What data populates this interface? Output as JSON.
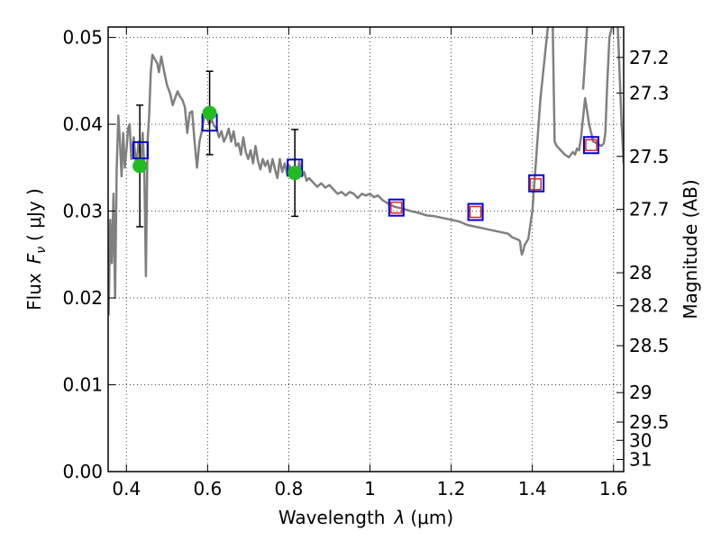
{
  "chart_data": {
    "type": "line",
    "xlabel": "Wavelength",
    "xlabel_symbol": "λ",
    "xlabel_unit": "(μm)",
    "ylabel": "Flux",
    "ylabel_symbol": "F",
    "ylabel_subscript": "ν",
    "ylabel_unit": "( μJy )",
    "y2label": "Magnitude (AB)",
    "xlim": [
      0.355,
      1.625
    ],
    "ylim": [
      0.0,
      0.0512
    ],
    "grid": true,
    "x_ticks": [
      {
        "value": 0.4,
        "label": "0.4"
      },
      {
        "value": 0.6,
        "label": "0.6"
      },
      {
        "value": 0.8,
        "label": "0.8"
      },
      {
        "value": 1.0,
        "label": "1"
      },
      {
        "value": 1.2,
        "label": "1.2"
      },
      {
        "value": 1.4,
        "label": "1.4"
      },
      {
        "value": 1.6,
        "label": "1.6"
      }
    ],
    "y_ticks": [
      {
        "value": 0.0,
        "label": "0.00"
      },
      {
        "value": 0.01,
        "label": "0.01"
      },
      {
        "value": 0.02,
        "label": "0.02"
      },
      {
        "value": 0.03,
        "label": "0.03"
      },
      {
        "value": 0.04,
        "label": "0.04"
      },
      {
        "value": 0.05,
        "label": "0.05"
      }
    ],
    "y2_ticks": [
      {
        "flux": 0.0477,
        "label": "27.2"
      },
      {
        "flux": 0.0436,
        "label": "27.3"
      },
      {
        "flux": 0.0363,
        "label": "27.5"
      },
      {
        "flux": 0.0302,
        "label": "27.7"
      },
      {
        "flux": 0.0229,
        "label": "28"
      },
      {
        "flux": 0.0191,
        "label": "28.2"
      },
      {
        "flux": 0.0145,
        "label": "28.5"
      },
      {
        "flux": 0.0091,
        "label": "29"
      },
      {
        "flux": 0.0057,
        "label": "29.5"
      },
      {
        "flux": 0.0036,
        "label": "30"
      },
      {
        "flux": 0.0014,
        "label": "31"
      }
    ],
    "series": [
      {
        "name": "model SED",
        "style": "line",
        "color": "#808080",
        "x": [
          0.356,
          0.36,
          0.364,
          0.368,
          0.372,
          0.376,
          0.38,
          0.384,
          0.388,
          0.392,
          0.396,
          0.4,
          0.404,
          0.408,
          0.412,
          0.418,
          0.424,
          0.43,
          0.436,
          0.44,
          0.444,
          0.448,
          0.452,
          0.456,
          0.46,
          0.464,
          0.47,
          0.476,
          0.48,
          0.486,
          0.492,
          0.5,
          0.508,
          0.514,
          0.52,
          0.526,
          0.532,
          0.538,
          0.544,
          0.55,
          0.556,
          0.562,
          0.568,
          0.574,
          0.58,
          0.586,
          0.592,
          0.598,
          0.604,
          0.61,
          0.616,
          0.622,
          0.628,
          0.634,
          0.64,
          0.646,
          0.652,
          0.658,
          0.664,
          0.67,
          0.676,
          0.682,
          0.688,
          0.694,
          0.7,
          0.706,
          0.712,
          0.718,
          0.724,
          0.73,
          0.736,
          0.742,
          0.748,
          0.754,
          0.76,
          0.766,
          0.772,
          0.778,
          0.784,
          0.79,
          0.796,
          0.802,
          0.808,
          0.814,
          0.82,
          0.826,
          0.832,
          0.838,
          0.844,
          0.85,
          0.86,
          0.87,
          0.88,
          0.89,
          0.9,
          0.91,
          0.92,
          0.93,
          0.94,
          0.95,
          0.96,
          0.97,
          0.98,
          0.99,
          1.0,
          1.01,
          1.02,
          1.03,
          1.04,
          1.06,
          1.08,
          1.1,
          1.12,
          1.14,
          1.16,
          1.18,
          1.2,
          1.22,
          1.24,
          1.26,
          1.28,
          1.3,
          1.32,
          1.34,
          1.35,
          1.36,
          1.366,
          1.37,
          1.372,
          1.374,
          1.376,
          1.378,
          1.38,
          1.39,
          1.4,
          1.42,
          1.44,
          1.446,
          1.45,
          1.455,
          1.46,
          1.47,
          1.48,
          1.49,
          1.5,
          1.505,
          1.51,
          1.515,
          1.52,
          1.53,
          1.54,
          1.55,
          1.56,
          1.57,
          1.576,
          1.58,
          1.584,
          1.59,
          1.6,
          1.61,
          1.62,
          1.625
        ],
        "y": [
          0.018,
          0.029,
          0.024,
          0.032,
          0.02,
          0.035,
          0.041,
          0.038,
          0.034,
          0.039,
          0.035,
          0.037,
          0.0395,
          0.04,
          0.036,
          0.0385,
          0.035,
          0.038,
          0.036,
          0.039,
          0.035,
          0.0225,
          0.038,
          0.041,
          0.046,
          0.048,
          0.0475,
          0.047,
          0.046,
          0.0478,
          0.0463,
          0.0445,
          0.0435,
          0.0422,
          0.043,
          0.0438,
          0.0432,
          0.0428,
          0.042,
          0.039,
          0.0413,
          0.0415,
          0.038,
          0.035,
          0.038,
          0.0392,
          0.041,
          0.0408,
          0.04,
          0.0405,
          0.0398,
          0.0395,
          0.0385,
          0.0392,
          0.038,
          0.0386,
          0.0395,
          0.038,
          0.0392,
          0.0375,
          0.0378,
          0.0365,
          0.0385,
          0.0368,
          0.036,
          0.037,
          0.0355,
          0.0375,
          0.0358,
          0.0348,
          0.036,
          0.0352,
          0.0358,
          0.0345,
          0.036,
          0.0348,
          0.0338,
          0.036,
          0.0345,
          0.0355,
          0.0342,
          0.0352,
          0.0345,
          0.035,
          0.0342,
          0.0357,
          0.034,
          0.0345,
          0.0335,
          0.0338,
          0.0333,
          0.0328,
          0.0332,
          0.0327,
          0.033,
          0.0325,
          0.032,
          0.0322,
          0.0318,
          0.0322,
          0.032,
          0.0315,
          0.032,
          0.0318,
          0.032,
          0.0316,
          0.0318,
          0.0313,
          0.031,
          0.0305,
          0.0303,
          0.03,
          0.0298,
          0.0295,
          0.0294,
          0.0292,
          0.029,
          0.0288,
          0.0284,
          0.0282,
          0.028,
          0.0278,
          0.0276,
          0.0274,
          0.027,
          0.0268,
          0.0267,
          0.0265,
          0.0255,
          0.025,
          0.0252,
          0.0255,
          0.026,
          0.0268,
          0.03,
          0.043,
          0.052,
          0.052,
          0.052,
          0.038,
          0.0375,
          0.037,
          0.0365,
          0.0362,
          0.0368,
          0.0365,
          0.0372,
          0.037,
          0.0385,
          0.043,
          0.04,
          0.038,
          0.0378,
          0.0375,
          0.0378,
          0.039,
          0.044,
          0.05,
          0.052,
          0.052,
          0.04,
          0.0355
        ]
      },
      {
        "name": "NIR segment",
        "style": "line",
        "color": "#808080",
        "x": [
          1.525,
          1.528,
          1.532,
          1.536
        ],
        "y": [
          0.044,
          0.046,
          0.049,
          0.052
        ]
      },
      {
        "name": "blue squares",
        "style": "square-marker",
        "color": "#0000dd",
        "x": [
          0.435,
          0.605,
          0.815,
          1.065,
          1.26,
          1.41,
          1.545
        ],
        "y": [
          0.037,
          0.0402,
          0.035,
          0.0304,
          0.0299,
          0.0332,
          0.0376
        ]
      },
      {
        "name": "red squares",
        "style": "square-marker-small",
        "color": "#dd2222",
        "x": [
          1.065,
          1.26,
          1.408,
          1.545
        ],
        "y": [
          0.0304,
          0.0299,
          0.0331,
          0.0376
        ]
      },
      {
        "name": "green points",
        "style": "circle-errorbar",
        "color": "#22bb22",
        "x": [
          0.433,
          0.605,
          0.815
        ],
        "y": [
          0.0352,
          0.0413,
          0.0344
        ],
        "yerr": [
          0.007,
          0.0048,
          0.005
        ]
      }
    ]
  }
}
